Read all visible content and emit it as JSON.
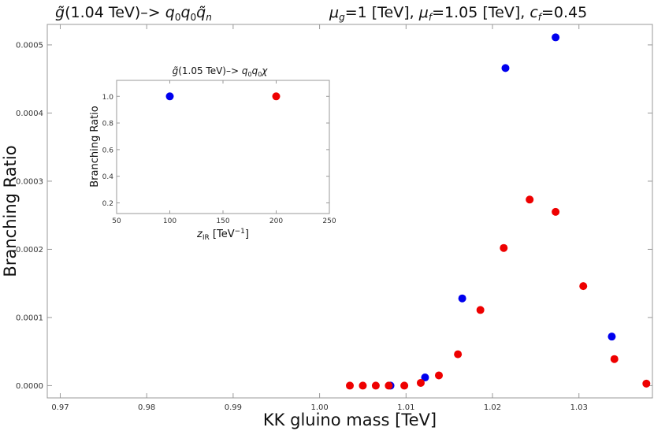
{
  "chart_data": [
    {
      "type": "scatter",
      "title_left": "g̃(1.04 TeV)–> q₀q₀q̃ₙ",
      "title_right": "μg=1 [TeV], μf=1.05 [TeV], cf=0.45",
      "xlabel": "KK gluino mass [TeV]",
      "ylabel": "Branching Ratio",
      "xlim": [
        0.9685,
        1.0385
      ],
      "ylim": [
        -1.8e-05,
        0.00053
      ],
      "x_ticks": [
        0.97,
        0.98,
        0.99,
        1.0,
        1.01,
        1.02,
        1.03
      ],
      "x_tick_labels": [
        "0.97",
        "0.98",
        "0.99",
        "1.00",
        "1.01",
        "1.02",
        "1.03"
      ],
      "y_ticks": [
        0,
        0.0001,
        0.0002,
        0.0003,
        0.0004,
        0.0005
      ],
      "y_tick_labels": [
        "0.0000",
        "0.0001",
        "0.0002",
        "0.0003",
        "0.0004",
        "0.0005"
      ],
      "grid": false,
      "series": [
        {
          "color": "#0000ee",
          "points": [
            [
              1.0082,
              0.0
            ],
            [
              1.0122,
              1.2e-05
            ],
            [
              1.0165,
              0.000128
            ],
            [
              1.0215,
              0.000466
            ],
            [
              1.0273,
              0.000511
            ],
            [
              1.0338,
              7.2e-05
            ]
          ]
        },
        {
          "color": "#ee0000",
          "points": [
            [
              1.0035,
              0.0
            ],
            [
              1.005,
              0.0
            ],
            [
              1.0065,
              0.0
            ],
            [
              1.008,
              0.0
            ],
            [
              1.0098,
              0.0
            ],
            [
              1.0117,
              4e-06
            ],
            [
              1.0138,
              1.5e-05
            ],
            [
              1.016,
              4.6e-05
            ],
            [
              1.0186,
              0.000111
            ],
            [
              1.0213,
              0.000202
            ],
            [
              1.0243,
              0.000273
            ],
            [
              1.0273,
              0.000255
            ],
            [
              1.0305,
              0.000146
            ],
            [
              1.0341,
              3.9e-05
            ],
            [
              1.0378,
              3e-06
            ]
          ]
        }
      ]
    },
    {
      "type": "scatter",
      "title": "g̃(1.05 TeV)–> q₀q₀χ",
      "xlabel": "zIR [TeV⁻¹]",
      "ylabel": "Branching Ratio",
      "xlim": [
        50,
        250
      ],
      "ylim": [
        0.12,
        1.12
      ],
      "x_ticks": [
        50,
        100,
        150,
        200,
        250
      ],
      "x_tick_labels": [
        "50",
        "100",
        "150",
        "200",
        "250"
      ],
      "y_ticks": [
        0.2,
        0.4,
        0.6,
        0.8,
        1.0
      ],
      "y_tick_labels": [
        "0.2",
        "0.4",
        "0.6",
        "0.8",
        "1.0"
      ],
      "grid": false,
      "series": [
        {
          "color": "#0000ee",
          "points": [
            [
              100,
              1.0
            ]
          ]
        },
        {
          "color": "#ee0000",
          "points": [
            [
              200,
              1.0
            ]
          ]
        }
      ]
    }
  ]
}
